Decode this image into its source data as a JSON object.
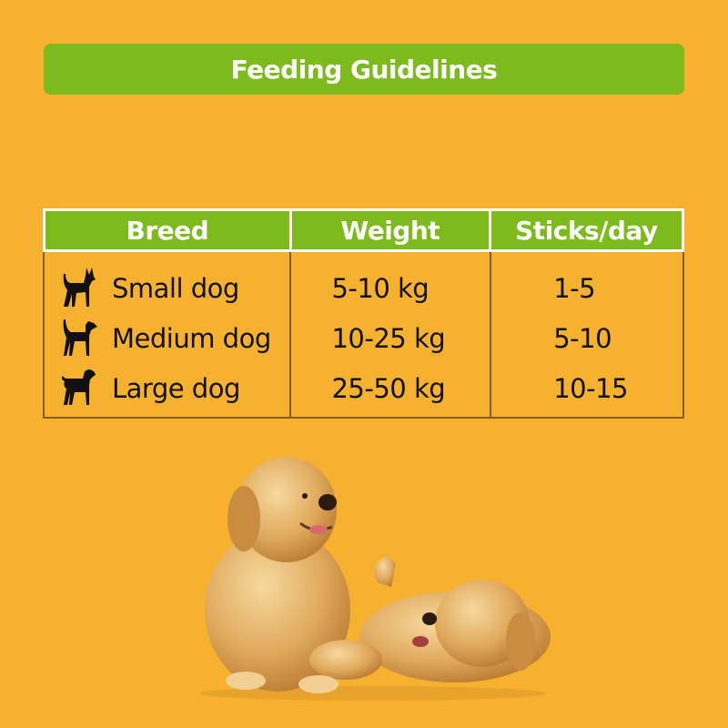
{
  "title": "Feeding Guidelines",
  "table": {
    "headers": [
      "Breed",
      "Weight",
      "Sticks/day"
    ],
    "rows": [
      {
        "icon": "small-dog-icon",
        "breed": "Small dog",
        "weight": "5-10 kg",
        "sticks": "1-5"
      },
      {
        "icon": "medium-dog-icon",
        "breed": "Medium dog",
        "weight": "10-25 kg",
        "sticks": "5-10"
      },
      {
        "icon": "large-dog-icon",
        "breed": "Large dog",
        "weight": "25-50 kg",
        "sticks": "10-15"
      }
    ]
  },
  "colors": {
    "background": "#f6b12e",
    "accent": "#7dba1c",
    "border": "#8a5a26"
  }
}
